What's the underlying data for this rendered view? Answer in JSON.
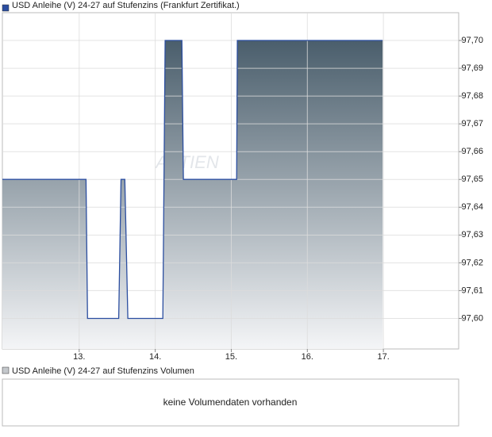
{
  "chart_data": {
    "type": "area",
    "title": "USD Anleihe (V) 24-27 auf Stufenzins (Frankfurt Zertifikat.)",
    "watermark": "AKTIEN",
    "x": [
      11.99,
      13.09,
      13.11,
      13.52,
      13.55,
      13.6,
      13.64,
      14.1,
      14.13,
      14.35,
      14.37,
      15.07,
      15.08,
      16.99
    ],
    "series": [
      {
        "name": "USD Anleihe (V) 24-27 auf Stufenzins (Frankfurt Zertifikat.)",
        "color": "#2b4ea0",
        "fill_top": "#4a5e6c",
        "fill_bottom": "#f4f5f7",
        "values": [
          97.65,
          97.65,
          97.6,
          97.6,
          97.65,
          97.65,
          97.6,
          97.6,
          97.7,
          97.7,
          97.65,
          97.65,
          97.7,
          97.7
        ]
      }
    ],
    "xlim": [
      11.99,
      17.99
    ],
    "xticks": [
      {
        "value": 13,
        "label": "13."
      },
      {
        "value": 14,
        "label": "14."
      },
      {
        "value": 15,
        "label": "15."
      },
      {
        "value": 16,
        "label": "16."
      },
      {
        "value": 17,
        "label": "17."
      }
    ],
    "ylim": [
      97.589,
      97.71
    ],
    "yticks": [
      {
        "value": 97.6,
        "label": "97,60"
      },
      {
        "value": 97.61,
        "label": "97,61"
      },
      {
        "value": 97.62,
        "label": "97,62"
      },
      {
        "value": 97.63,
        "label": "97,63"
      },
      {
        "value": 97.64,
        "label": "97,64"
      },
      {
        "value": 97.65,
        "label": "97,65"
      },
      {
        "value": 97.66,
        "label": "97,66"
      },
      {
        "value": 97.67,
        "label": "97,67"
      },
      {
        "value": 97.68,
        "label": "97,68"
      },
      {
        "value": 97.69,
        "label": "97,69"
      },
      {
        "value": 97.7,
        "label": "97,70"
      }
    ],
    "grid": true
  },
  "volume_panel": {
    "legend": "USD Anleihe (V) 24-27 auf Stufenzins Volumen",
    "message": "keine Volumendaten vorhanden"
  }
}
